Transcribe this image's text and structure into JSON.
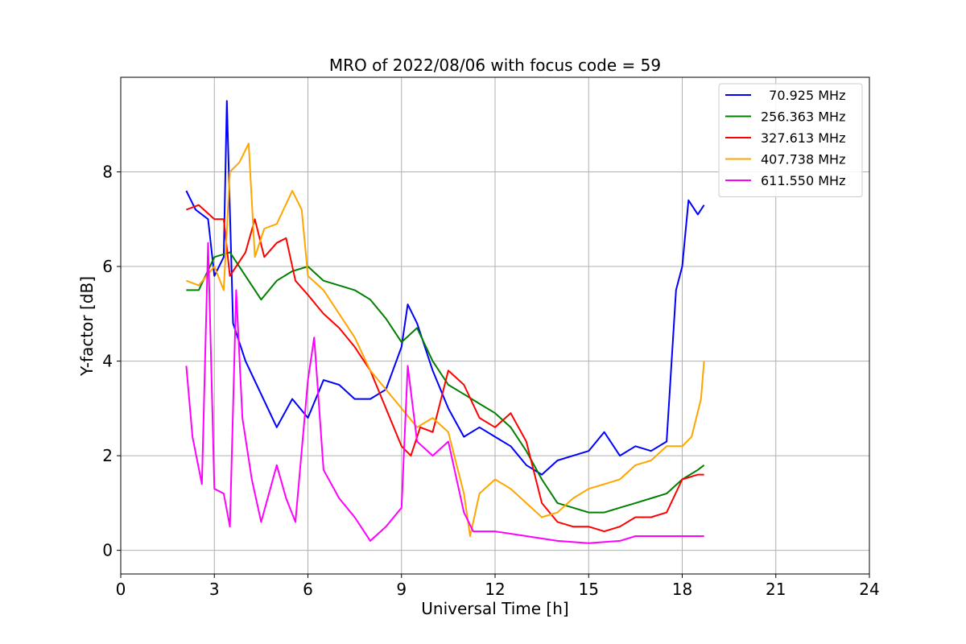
{
  "chart_data": {
    "type": "line",
    "title": "MRO of 2022/08/06 with focus code = 59",
    "xlabel": "Universal Time [h]",
    "ylabel": "Y-factor [dB]",
    "xlim": [
      0,
      24
    ],
    "ylim": [
      -0.5,
      10
    ],
    "xticks": [
      0,
      3,
      6,
      9,
      12,
      15,
      18,
      21,
      24
    ],
    "yticks": [
      0,
      2,
      4,
      6,
      8
    ],
    "grid": true,
    "legend_position": "top-right",
    "series": [
      {
        "name": "  70.925 MHz",
        "color": "#0000ff",
        "x": [
          2.1,
          2.4,
          2.8,
          3.0,
          3.3,
          3.4,
          3.6,
          4.0,
          4.5,
          5.0,
          5.5,
          6.0,
          6.5,
          7.0,
          7.5,
          8.0,
          8.5,
          9.0,
          9.2,
          9.5,
          10.0,
          10.5,
          11.0,
          11.5,
          12.0,
          12.5,
          13.0,
          13.5,
          14.0,
          14.5,
          15.0,
          15.5,
          16.0,
          16.5,
          17.0,
          17.5,
          17.8,
          18.0,
          18.2,
          18.5,
          18.7
        ],
        "y": [
          7.6,
          7.2,
          7.0,
          5.8,
          6.2,
          9.5,
          4.8,
          4.0,
          3.3,
          2.6,
          3.2,
          2.8,
          3.6,
          3.5,
          3.2,
          3.2,
          3.4,
          4.3,
          5.2,
          4.8,
          3.8,
          3.0,
          2.4,
          2.6,
          2.4,
          2.2,
          1.8,
          1.6,
          1.9,
          2.0,
          2.1,
          2.5,
          2.0,
          2.2,
          2.1,
          2.3,
          5.5,
          6.0,
          7.4,
          7.1,
          7.3
        ]
      },
      {
        "name": "256.363 MHz",
        "color": "#008000",
        "x": [
          2.1,
          2.5,
          3.0,
          3.5,
          4.0,
          4.5,
          5.0,
          5.5,
          6.0,
          6.5,
          7.0,
          7.5,
          8.0,
          8.5,
          9.0,
          9.5,
          10.0,
          10.5,
          11.0,
          11.5,
          12.0,
          12.5,
          13.0,
          13.5,
          14.0,
          14.5,
          15.0,
          15.5,
          16.0,
          16.5,
          17.0,
          17.5,
          18.0,
          18.5,
          18.7
        ],
        "y": [
          5.5,
          5.5,
          6.2,
          6.3,
          5.8,
          5.3,
          5.7,
          5.9,
          6.0,
          5.7,
          5.6,
          5.5,
          5.3,
          4.9,
          4.4,
          4.7,
          4.0,
          3.5,
          3.3,
          3.1,
          2.9,
          2.6,
          2.1,
          1.5,
          1.0,
          0.9,
          0.8,
          0.8,
          0.9,
          1.0,
          1.1,
          1.2,
          1.5,
          1.7,
          1.8
        ]
      },
      {
        "name": "327.613 MHz",
        "color": "#ff0000",
        "x": [
          2.1,
          2.5,
          3.0,
          3.3,
          3.5,
          4.0,
          4.3,
          4.6,
          5.0,
          5.3,
          5.6,
          6.0,
          6.5,
          7.0,
          7.5,
          8.0,
          8.5,
          9.0,
          9.3,
          9.6,
          10.0,
          10.5,
          11.0,
          11.5,
          12.0,
          12.5,
          13.0,
          13.5,
          14.0,
          14.5,
          15.0,
          15.5,
          16.0,
          16.5,
          17.0,
          17.5,
          18.0,
          18.5,
          18.7
        ],
        "y": [
          7.2,
          7.3,
          7.0,
          7.0,
          5.8,
          6.3,
          7.0,
          6.2,
          6.5,
          6.6,
          5.7,
          5.4,
          5.0,
          4.7,
          4.3,
          3.8,
          3.0,
          2.2,
          2.0,
          2.6,
          2.5,
          3.8,
          3.5,
          2.8,
          2.6,
          2.9,
          2.3,
          1.0,
          0.6,
          0.5,
          0.5,
          0.4,
          0.5,
          0.7,
          0.7,
          0.8,
          1.5,
          1.6,
          1.6
        ]
      },
      {
        "name": "407.738 MHz",
        "color": "#ffa500",
        "x": [
          2.1,
          2.5,
          3.0,
          3.3,
          3.5,
          3.8,
          4.1,
          4.3,
          4.6,
          5.0,
          5.5,
          5.8,
          6.0,
          6.5,
          7.0,
          7.5,
          8.0,
          8.5,
          9.0,
          9.5,
          10.0,
          10.5,
          11.0,
          11.2,
          11.5,
          12.0,
          12.5,
          13.0,
          13.5,
          14.0,
          14.5,
          15.0,
          15.5,
          16.0,
          16.5,
          17.0,
          17.5,
          18.0,
          18.3,
          18.6,
          18.7
        ],
        "y": [
          5.7,
          5.6,
          6.0,
          5.5,
          8.0,
          8.2,
          8.6,
          6.2,
          6.8,
          6.9,
          7.6,
          7.2,
          5.8,
          5.5,
          5.0,
          4.5,
          3.8,
          3.4,
          3.0,
          2.6,
          2.8,
          2.5,
          1.2,
          0.3,
          1.2,
          1.5,
          1.3,
          1.0,
          0.7,
          0.8,
          1.1,
          1.3,
          1.4,
          1.5,
          1.8,
          1.9,
          2.2,
          2.2,
          2.4,
          3.2,
          4.0
        ]
      },
      {
        "name": "611.550 MHz",
        "color": "#ff00ff",
        "x": [
          2.1,
          2.3,
          2.6,
          2.8,
          3.0,
          3.3,
          3.5,
          3.7,
          3.9,
          4.2,
          4.5,
          5.0,
          5.3,
          5.6,
          6.0,
          6.2,
          6.5,
          7.0,
          7.5,
          8.0,
          8.5,
          9.0,
          9.2,
          9.5,
          10.0,
          10.5,
          11.0,
          11.3,
          11.6,
          12.0,
          13.0,
          14.0,
          15.0,
          16.0,
          16.5,
          17.0,
          17.5,
          18.0,
          18.5,
          18.7
        ],
        "y": [
          3.9,
          2.4,
          1.4,
          6.5,
          1.3,
          1.2,
          0.5,
          5.5,
          2.8,
          1.5,
          0.6,
          1.8,
          1.1,
          0.6,
          3.6,
          4.5,
          1.7,
          1.1,
          0.7,
          0.2,
          0.5,
          0.9,
          3.9,
          2.3,
          2.0,
          2.3,
          0.8,
          0.4,
          0.4,
          0.4,
          0.3,
          0.2,
          0.15,
          0.2,
          0.3,
          0.3,
          0.3,
          0.3,
          0.3,
          0.3
        ]
      }
    ]
  }
}
